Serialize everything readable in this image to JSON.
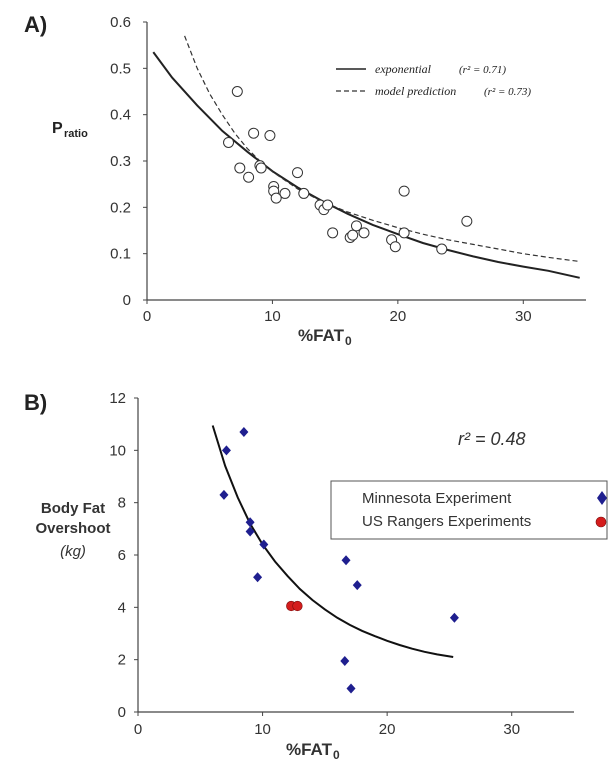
{
  "chart_data": [
    {
      "panel_label": "A)",
      "type": "scatter",
      "ylabel_main": "P",
      "ylabel_sub": "ratio",
      "xlabel_main": "%FAT",
      "xlabel_sub": "0",
      "xlim": [
        0,
        35
      ],
      "ylim": [
        0,
        0.6
      ],
      "xticks": [
        0,
        10,
        20,
        30
      ],
      "yticks": [
        0,
        0.1,
        0.2,
        0.3,
        0.4,
        0.5,
        0.6
      ],
      "legend": [
        {
          "label": "exponential",
          "r2": "(r² = 0.71)",
          "style": "solid"
        },
        {
          "label": "model prediction",
          "r2": "(r² = 0.73)",
          "style": "dashed"
        }
      ],
      "points": [
        [
          7.2,
          0.45
        ],
        [
          6.5,
          0.34
        ],
        [
          8.5,
          0.36
        ],
        [
          9.8,
          0.355
        ],
        [
          7.4,
          0.285
        ],
        [
          8.1,
          0.265
        ],
        [
          9.0,
          0.29
        ],
        [
          9.1,
          0.285
        ],
        [
          10.1,
          0.245
        ],
        [
          10.1,
          0.235
        ],
        [
          10.3,
          0.22
        ],
        [
          11.0,
          0.23
        ],
        [
          12.0,
          0.275
        ],
        [
          12.5,
          0.23
        ],
        [
          13.8,
          0.205
        ],
        [
          14.1,
          0.195
        ],
        [
          14.4,
          0.205
        ],
        [
          14.8,
          0.145
        ],
        [
          16.2,
          0.135
        ],
        [
          16.4,
          0.14
        ],
        [
          16.7,
          0.16
        ],
        [
          17.3,
          0.145
        ],
        [
          19.5,
          0.13
        ],
        [
          19.8,
          0.115
        ],
        [
          20.5,
          0.145
        ],
        [
          20.5,
          0.235
        ],
        [
          23.5,
          0.11
        ],
        [
          25.5,
          0.17
        ]
      ],
      "series": [
        {
          "name": "exponential",
          "style": "solid",
          "x": [
            0.5,
            2,
            4,
            6,
            8,
            10,
            12,
            14,
            16,
            18,
            20,
            22,
            24,
            26,
            28,
            30,
            32,
            34.5
          ],
          "y": [
            0.535,
            0.48,
            0.42,
            0.365,
            0.32,
            0.278,
            0.243,
            0.213,
            0.186,
            0.162,
            0.142,
            0.123,
            0.108,
            0.094,
            0.082,
            0.072,
            0.063,
            0.048
          ]
        },
        {
          "name": "model prediction",
          "style": "dashed",
          "x": [
            3,
            4,
            5,
            6,
            7,
            8,
            9,
            10,
            12,
            14,
            16,
            18,
            20,
            22,
            24,
            26,
            28,
            30,
            32,
            34.5
          ],
          "y": [
            0.57,
            0.5,
            0.445,
            0.4,
            0.36,
            0.327,
            0.3,
            0.277,
            0.24,
            0.212,
            0.19,
            0.172,
            0.156,
            0.142,
            0.13,
            0.12,
            0.11,
            0.1,
            0.092,
            0.083
          ]
        }
      ]
    },
    {
      "panel_label": "B)",
      "type": "scatter",
      "ylabel_lines": [
        "Body Fat",
        "Overshoot"
      ],
      "yunit": "(kg)",
      "xlabel_main": "%FAT",
      "xlabel_sub": "0",
      "xlim": [
        0,
        35
      ],
      "ylim": [
        0,
        12
      ],
      "xticks": [
        0,
        10,
        20,
        30
      ],
      "yticks": [
        0,
        2,
        4,
        6,
        8,
        10,
        12
      ],
      "annotation": "r² = 0.48",
      "legend": [
        {
          "label": "Minnesota Experiment",
          "marker": "diamond",
          "color": "#1f1f8f"
        },
        {
          "label": "US Rangers Experiments",
          "marker": "circle",
          "color": "#d41c1c"
        }
      ],
      "series": [
        {
          "name": "Minnesota Experiment",
          "marker": "diamond",
          "color": "#1f1f8f",
          "points": [
            [
              8.5,
              10.7
            ],
            [
              7.1,
              10.0
            ],
            [
              6.9,
              8.3
            ],
            [
              9.0,
              7.25
            ],
            [
              9.0,
              6.9
            ],
            [
              10.1,
              6.4
            ],
            [
              9.6,
              5.15
            ],
            [
              16.7,
              5.8
            ],
            [
              17.6,
              4.85
            ],
            [
              25.4,
              3.6
            ],
            [
              16.6,
              1.95
            ],
            [
              17.1,
              0.9
            ]
          ]
        },
        {
          "name": "US Rangers Experiments",
          "marker": "circle",
          "color": "#d41c1c",
          "points": [
            [
              12.3,
              4.05
            ],
            [
              12.8,
              4.05
            ]
          ]
        }
      ],
      "fit": {
        "x": [
          6.0,
          7,
          8,
          9,
          10,
          11,
          12,
          13,
          14,
          15,
          16,
          17,
          18,
          19,
          20,
          21,
          22,
          23,
          24,
          25.3
        ],
        "y": [
          10.95,
          9.4,
          8.2,
          7.2,
          6.4,
          5.75,
          5.2,
          4.7,
          4.28,
          3.92,
          3.6,
          3.33,
          3.1,
          2.9,
          2.72,
          2.56,
          2.42,
          2.3,
          2.2,
          2.1
        ]
      }
    }
  ]
}
